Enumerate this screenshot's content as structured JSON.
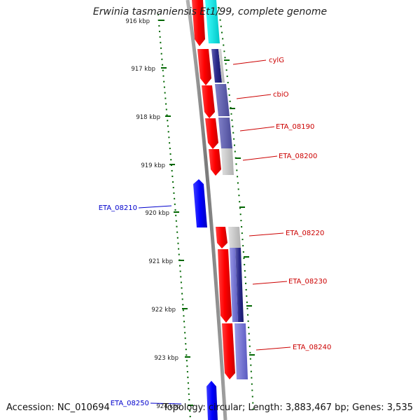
{
  "title": "Erwinia tasmaniensis Et1/99, complete genome",
  "footer": {
    "accession": "Accession: NC_010694",
    "summary": "Topology: circular; Length: 3,883,467 bp; Genes: 3,535"
  },
  "ticks": [
    "916 kbp",
    "917 kbp",
    "918 kbp",
    "919 kbp",
    "920 kbp",
    "921 kbp",
    "922 kbp",
    "923 kbp",
    "924 kbp"
  ],
  "gene_labels": [
    {
      "name": "cylG",
      "strand": "forward"
    },
    {
      "name": "cbiO",
      "strand": "forward"
    },
    {
      "name": "ETA_08190",
      "strand": "forward"
    },
    {
      "name": "ETA_08200",
      "strand": "forward"
    },
    {
      "name": "ETA_08210",
      "strand": "reverse"
    },
    {
      "name": "ETA_08220",
      "strand": "forward"
    },
    {
      "name": "ETA_08230",
      "strand": "forward"
    },
    {
      "name": "ETA_08240",
      "strand": "forward"
    },
    {
      "name": "ETA_08250",
      "strand": "reverse"
    }
  ],
  "colors": {
    "forward_gene": "#ff0000",
    "reverse_gene": "#0000ff",
    "forward_label": "#cc0000",
    "reverse_label": "#0000cc",
    "backbone": "#8a8a8a",
    "gc_plot": "#006600",
    "cog_cyan": "#00e5e5",
    "cog_navy": "#2a2a8a",
    "cog_slate": "#5a5aa8",
    "cog_lavender": "#7070d0",
    "cog_gray": "#c8c8c8"
  }
}
